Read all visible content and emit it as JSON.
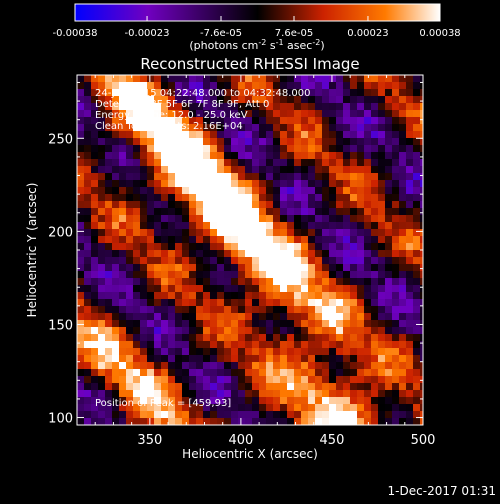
{
  "chart_data": {
    "type": "heatmap",
    "title": "Reconstructed RHESSI Image",
    "xlabel": "Heliocentric X (arcsec)",
    "ylabel": "Heliocentric Y (arcsec)",
    "xlim": [
      310,
      500
    ],
    "ylim": [
      96,
      284
    ],
    "x_ticks": [
      {
        "value": 350,
        "label": "350"
      },
      {
        "value": 400,
        "label": "400"
      },
      {
        "value": 450,
        "label": "450"
      },
      {
        "value": 500,
        "label": "500"
      }
    ],
    "y_ticks": [
      {
        "value": 100,
        "label": "100"
      },
      {
        "value": 150,
        "label": "150"
      },
      {
        "value": 200,
        "label": "200"
      },
      {
        "value": 250,
        "label": "250"
      }
    ],
    "colorbar": {
      "range": [
        -0.00038,
        0.00038
      ],
      "tick_values": [
        -0.00038,
        -0.00023,
        -7.6e-05,
        7.6e-05,
        0.00023,
        0.00038
      ],
      "tick_labels": [
        "-0.00038",
        "-0.00023",
        "-7.6e-05",
        "7.6e-05",
        "0.00023",
        "0.00038"
      ],
      "unit_label_main": "(photons cm",
      "unit_sup_1": "-2",
      "unit_mid_1": " s",
      "unit_sup_2": "-1",
      "unit_mid_2": " asec",
      "unit_sup_3": "-2",
      "unit_end": ")",
      "stops": [
        "#0000ff",
        "#7000c0",
        "#000000",
        "#cc2200",
        "#ff7a00",
        "#ffffff"
      ]
    },
    "annotations": {
      "time_range": "24-Jun-2015 04:22:48.000 to 04:32:48.000",
      "detectors": "Detectors: 3F 5F 6F 7F 8F 9F, Att 0",
      "energy": "Energy Range: 12.0 - 25.0 keV",
      "clean": "Clean     Total counts: 2.16E+04",
      "peak": "Position of Peak = [459,93]"
    },
    "footer_date": "1-Dec-2017 01:31",
    "pattern": {
      "direction": "diagonal bands from upper-left to lower-right",
      "bright_cores": [
        {
          "x": 385,
          "y": 212,
          "amp": 1.0
        },
        {
          "x": 360,
          "y": 252,
          "amp": 0.9
        },
        {
          "x": 425,
          "y": 170,
          "amp": 0.75
        },
        {
          "x": 460,
          "y": 100,
          "amp": 1.15
        },
        {
          "x": 340,
          "y": 120,
          "amp": 0.7
        }
      ]
    }
  }
}
